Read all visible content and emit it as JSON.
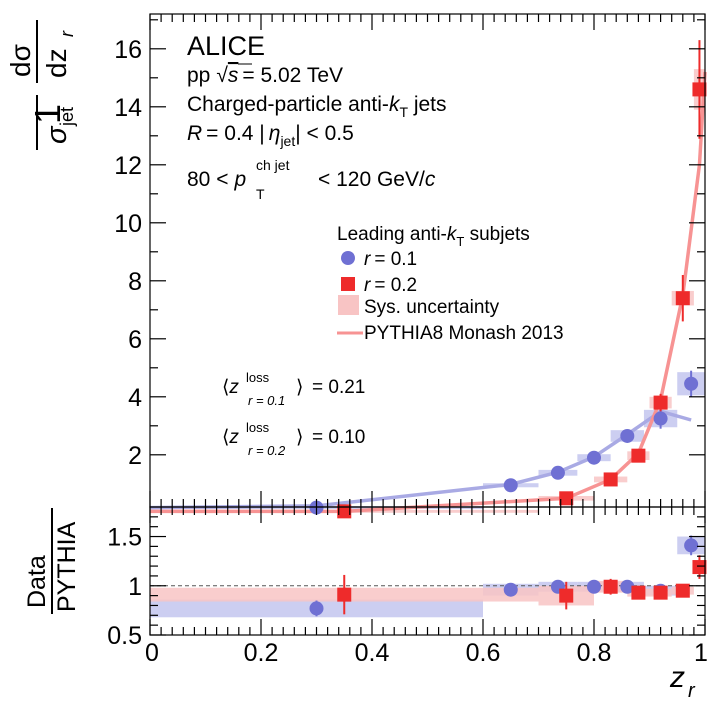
{
  "experiment": "ALICE",
  "labels": {
    "system_text": "pp",
    "energy_text": "= 5.02 TeV",
    "jets_text": "Charged-particle anti-",
    "jets_tail": " jets",
    "radius_text": "= 0.4  |",
    "eta_text": "| < 0.5",
    "pt_lo": "80 <",
    "pt_hi": "< 120 GeV/",
    "pt_sup": "ch jet",
    "pt_sub": "T",
    "jet_sub": "jet",
    "legend_title": "Leading anti-",
    "legend_title_tail": " subjets",
    "legend_r01": "= 0.1",
    "legend_r02": "= 0.2",
    "legend_sys": "Sys. uncertainty",
    "legend_pythia": "PYTHIA8 Monash 2013",
    "zloss_sup": "loss",
    "zloss_sub1": "r = 0.1",
    "zloss_sub2": "r = 0.2",
    "zloss_val1": "= 0.21",
    "zloss_val2": "= 0.10",
    "ylabel_top_num": "1",
    "ylabel_top_frac_num": "dσ",
    "ylabel_top_frac_den": "dz",
    "ylabel_bottom_num": "Data",
    "ylabel_bottom_den": "PYTHIA",
    "xlabel": "z"
  },
  "colors": {
    "r01": "#6f70d3",
    "r02": "#ee2b2b",
    "r01_band": "#c3c5ee",
    "r02_band": "#f8c4c4",
    "pythia_r01": "#a9aae4",
    "pythia_r02": "#f79393"
  },
  "chart_data": [
    {
      "type": "scatter",
      "panel": "top",
      "xlim": [
        0,
        1
      ],
      "ylim": [
        0.2,
        17.2
      ],
      "yticks": [
        2,
        4,
        6,
        8,
        10,
        12,
        14,
        16
      ],
      "ytick_labels": [
        "2",
        "4",
        "6",
        "8",
        "10",
        "12",
        "14",
        "16"
      ],
      "series": [
        {
          "name": "r = 0.1",
          "marker": "circle",
          "bins": [
            [
              0,
              0.6
            ],
            [
              0.6,
              0.7
            ],
            [
              0.7,
              0.77
            ],
            [
              0.77,
              0.83
            ],
            [
              0.83,
              0.89
            ],
            [
              0.89,
              0.95
            ],
            [
              0.95,
              1.0
            ]
          ],
          "x": [
            0.3,
            0.65,
            0.735,
            0.8,
            0.86,
            0.92,
            0.975
          ],
          "y": [
            0.18,
            0.95,
            1.38,
            1.9,
            2.65,
            3.25,
            4.45
          ],
          "yerr": [
            0.06,
            0.08,
            0.1,
            0.12,
            0.2,
            0.35,
            0.45
          ],
          "sys": [
            0.05,
            0.07,
            0.1,
            0.12,
            0.2,
            0.3,
            0.4
          ]
        },
        {
          "name": "r = 0.2",
          "marker": "square",
          "bins": [
            [
              0,
              0.7
            ],
            [
              0.7,
              0.8
            ],
            [
              0.8,
              0.86
            ],
            [
              0.86,
              0.9
            ],
            [
              0.9,
              0.94
            ],
            [
              0.94,
              0.98
            ],
            [
              0.98,
              1.0
            ]
          ],
          "x": [
            0.35,
            0.75,
            0.83,
            0.88,
            0.92,
            0.96,
            0.99
          ],
          "y": [
            0.05,
            0.5,
            1.15,
            1.97,
            3.8,
            7.4,
            14.6
          ],
          "yerr": [
            0.05,
            0.08,
            0.15,
            0.2,
            0.3,
            0.8,
            1.7
          ],
          "sys": [
            0.05,
            0.08,
            0.1,
            0.15,
            0.2,
            0.25,
            0.7
          ]
        }
      ],
      "pythia": [
        {
          "name": "r = 0.1",
          "x": [
            0.0,
            0.3,
            0.65,
            0.735,
            0.8,
            0.86,
            0.92,
            0.975
          ],
          "y": [
            0.18,
            0.24,
            0.98,
            1.4,
            1.93,
            2.7,
            3.5,
            3.2
          ]
        },
        {
          "name": "r = 0.2",
          "x": [
            0.0,
            0.35,
            0.75,
            0.83,
            0.88,
            0.92,
            0.96,
            0.99,
            1.0
          ],
          "y": [
            0.05,
            0.05,
            0.5,
            1.15,
            2.05,
            3.9,
            7.5,
            12.0,
            15.2
          ]
        }
      ]
    },
    {
      "type": "scatter",
      "panel": "ratio",
      "xlim": [
        0,
        1
      ],
      "ylim": [
        0.5,
        1.8
      ],
      "yticks": [
        0.5,
        1.0,
        1.5
      ],
      "ytick_labels": [
        "0.5",
        "1",
        "1.5"
      ],
      "xticks": [
        0,
        0.2,
        0.4,
        0.6,
        0.8,
        1.0
      ],
      "xtick_labels": [
        "0",
        "0.2",
        "0.4",
        "0.6",
        "0.8",
        "1"
      ],
      "reference_line": 1.0,
      "series": [
        {
          "name": "r = 0.1",
          "marker": "circle",
          "bins": [
            [
              0,
              0.6
            ],
            [
              0.6,
              0.7
            ],
            [
              0.7,
              0.77
            ],
            [
              0.77,
              0.83
            ],
            [
              0.83,
              0.89
            ],
            [
              0.89,
              0.95
            ],
            [
              0.95,
              1.0
            ]
          ],
          "x": [
            0.3,
            0.65,
            0.735,
            0.8,
            0.86,
            0.92,
            0.975
          ],
          "y": [
            0.77,
            0.96,
            0.99,
            0.99,
            0.99,
            0.95,
            1.41
          ],
          "yerr": [
            0.08,
            0.06,
            0.06,
            0.05,
            0.05,
            0.05,
            0.1
          ],
          "sys": [
            0.09,
            0.06,
            0.05,
            0.05,
            0.05,
            0.05,
            0.09
          ]
        },
        {
          "name": "r = 0.2",
          "marker": "square",
          "bins": [
            [
              0,
              0.7
            ],
            [
              0.7,
              0.8
            ],
            [
              0.8,
              0.86
            ],
            [
              0.86,
              0.9
            ],
            [
              0.9,
              0.94
            ],
            [
              0.94,
              0.98
            ],
            [
              0.98,
              1.0
            ]
          ],
          "x": [
            0.35,
            0.75,
            0.83,
            0.88,
            0.92,
            0.96,
            0.99
          ],
          "y": [
            0.91,
            0.9,
            0.99,
            0.93,
            0.93,
            0.95,
            1.19
          ],
          "yerr": [
            0.2,
            0.14,
            0.08,
            0.05,
            0.06,
            0.05,
            0.12
          ],
          "sys": [
            0.07,
            0.1,
            0.06,
            0.04,
            0.04,
            0.04,
            0.06
          ]
        }
      ]
    }
  ]
}
